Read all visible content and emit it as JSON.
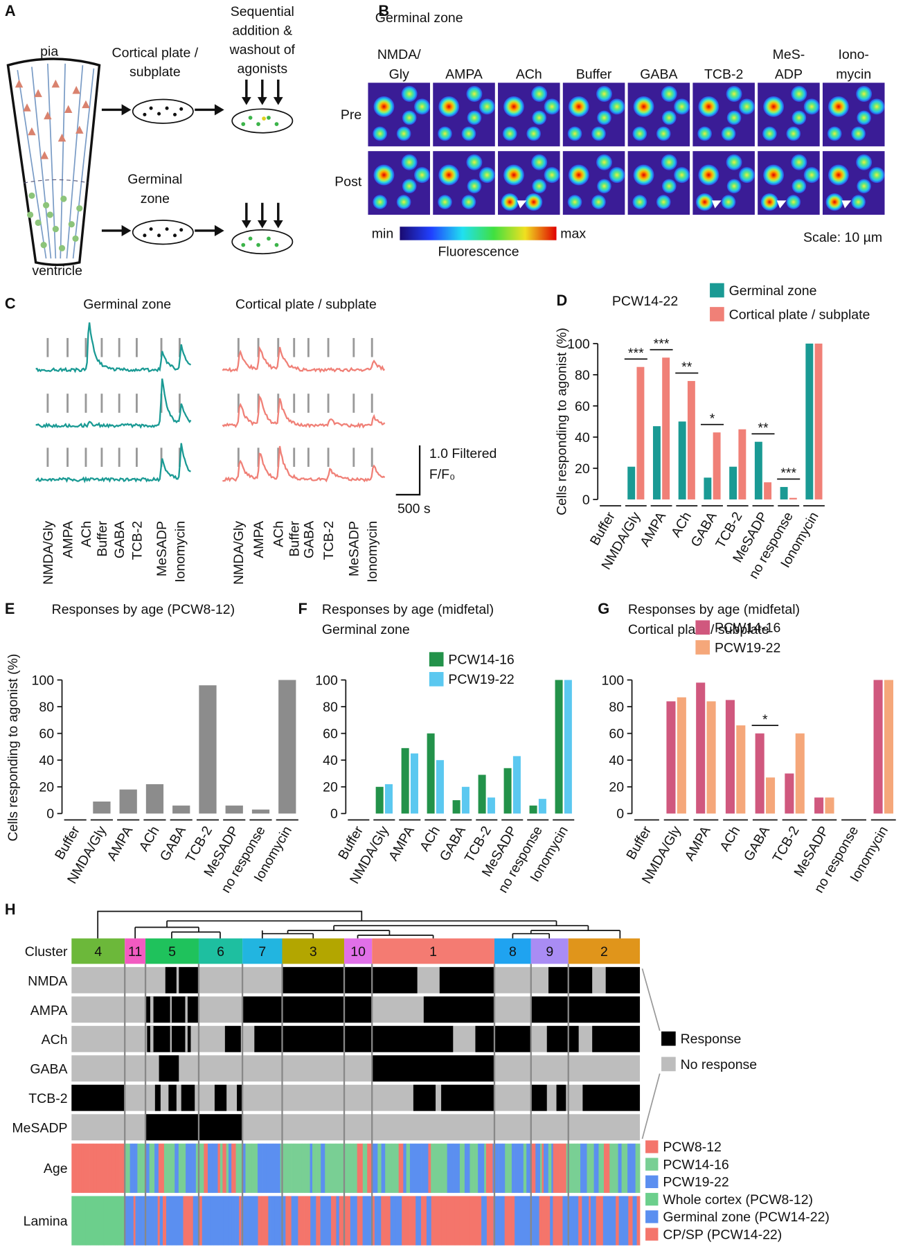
{
  "panel_labels": [
    "A",
    "B",
    "C",
    "D",
    "E",
    "F",
    "G",
    "H"
  ],
  "panel_a": {
    "top_label": "pia",
    "bottom_label": "ventricle",
    "cp_label": [
      "Cortical plate /",
      "subplate"
    ],
    "step_label": [
      "Sequential",
      "addition &",
      "washout of",
      "agonists"
    ],
    "gz_label": [
      "Germinal",
      "zone"
    ]
  },
  "panel_b": {
    "title": "Germinal zone",
    "columns": [
      [
        "NMDA/",
        "Gly"
      ],
      [
        "AMPA"
      ],
      [
        "ACh"
      ],
      [
        "Buffer"
      ],
      [
        "GABA"
      ],
      [
        "TCB-2"
      ],
      [
        "MeS-",
        "ADP"
      ],
      [
        "Iono-",
        "mycin"
      ]
    ],
    "rows": [
      "Pre",
      "Post"
    ],
    "colorbar_min": "min",
    "colorbar_max": "max",
    "colorbar_label": "Fluorescence",
    "scale": "Scale: 10 µm"
  },
  "panel_c": {
    "titles": [
      "Germinal zone",
      "Cortical plate / subplate"
    ],
    "agonists": [
      "NMDA/Gly",
      "AMPA",
      "ACh",
      "Buffer",
      "GABA",
      "TCB-2",
      "MeSADP",
      "Ionomycin"
    ],
    "scale_y": [
      "1.0 Filtered",
      "F/F₀"
    ],
    "scale_x": "500 s",
    "colors": [
      "#1a9a94",
      "#f08077"
    ]
  },
  "chart_data": [
    {
      "type": "bar",
      "title": "PCW14-22",
      "ylabel": "Cells responding to agonist (%)",
      "categories": [
        "Buffer",
        "NMDA/Gly",
        "AMPA",
        "ACh",
        "GABA",
        "TCB-2",
        "MeSADP",
        "no response",
        "Ionomycin"
      ],
      "series": [
        {
          "name": "Germinal zone",
          "color": "#1a9a94",
          "values": [
            0,
            21,
            47,
            50,
            14,
            21,
            37,
            8,
            100
          ]
        },
        {
          "name": "Cortical plate / subplate",
          "color": "#f08077",
          "values": [
            0,
            85,
            91,
            76,
            43,
            45,
            11,
            1,
            100
          ]
        }
      ],
      "annotations": [
        null,
        "***",
        "***",
        "**",
        "*",
        null,
        "**",
        "***",
        null
      ],
      "ylim": [
        0,
        100
      ],
      "yticks": [
        0,
        20,
        40,
        60,
        80,
        100
      ]
    },
    {
      "type": "bar",
      "title": "Responses by age (PCW8-12)",
      "ylabel": "Cells responding to agonist (%)",
      "categories": [
        "Buffer",
        "NMDA/Gly",
        "AMPA",
        "ACh",
        "GABA",
        "TCB-2",
        "MeSADP",
        "no response",
        "Ionomycin"
      ],
      "values": [
        0,
        9,
        18,
        22,
        6,
        96,
        6,
        3,
        100
      ],
      "color": "#8c8c8c",
      "ylim": [
        0,
        100
      ],
      "yticks": [
        0,
        20,
        40,
        60,
        80,
        100
      ]
    },
    {
      "type": "bar",
      "title": "Responses by age (midfetal)",
      "subtitle": "Germinal zone",
      "categories": [
        "Buffer",
        "NMDA/Gly",
        "AMPA",
        "ACh",
        "GABA",
        "TCB-2",
        "MeSADP",
        "no response",
        "Ionomycin"
      ],
      "series": [
        {
          "name": "PCW14-16",
          "color": "#23924a",
          "values": [
            0,
            20,
            49,
            60,
            10,
            29,
            34,
            6,
            100
          ]
        },
        {
          "name": "PCW19-22",
          "color": "#5bc8f0",
          "values": [
            0,
            22,
            45,
            40,
            20,
            12,
            43,
            11,
            100
          ]
        }
      ],
      "ylim": [
        0,
        100
      ],
      "yticks": [
        0,
        20,
        40,
        60,
        80,
        100
      ]
    },
    {
      "type": "bar",
      "title": "Responses by age (midfetal)",
      "subtitle": "Cortical plate / subplate",
      "categories": [
        "Buffer",
        "NMDA/Gly",
        "AMPA",
        "ACh",
        "GABA",
        "TCB-2",
        "MeSADP",
        "no response",
        "Ionomycin"
      ],
      "series": [
        {
          "name": "PCW14-16",
          "color": "#d0587e",
          "values": [
            0,
            84,
            98,
            85,
            60,
            30,
            12,
            0,
            100
          ]
        },
        {
          "name": "PCW19-22",
          "color": "#f5a77a",
          "values": [
            0,
            87,
            84,
            66,
            27,
            60,
            12,
            0,
            100
          ]
        }
      ],
      "annotations": [
        null,
        null,
        null,
        null,
        "*",
        null,
        null,
        null,
        null
      ],
      "ylim": [
        0,
        100
      ],
      "yticks": [
        0,
        20,
        40,
        60,
        80,
        100
      ]
    }
  ],
  "panel_h": {
    "cluster_label": "Cluster",
    "clusters": [
      "4",
      "11",
      "5",
      "6",
      "7",
      "3",
      "10",
      "1",
      "8",
      "9",
      "2"
    ],
    "cluster_colors": [
      "#6cb83a",
      "#f25bc1",
      "#1fc25c",
      "#1ebfa0",
      "#22b5e0",
      "#b3a600",
      "#e070e8",
      "#f47b72",
      "#1fa3f0",
      "#a98cf4",
      "#e0951b"
    ],
    "rows": [
      "NMDA",
      "AMPA",
      "ACh",
      "GABA",
      "TCB-2",
      "MeSADP"
    ],
    "age_label": "Age",
    "lamina_label": "Lamina",
    "response_legend": [
      "Response",
      "No response"
    ],
    "response_colors": [
      "#000000",
      "#bdbdbd"
    ],
    "age_legend": [
      "PCW8-12",
      "PCW14-16",
      "PCW19-22"
    ],
    "age_colors": [
      "#f4756b",
      "#79cf94",
      "#5b8ff0"
    ],
    "lamina_legend": [
      "Whole cortex (PCW8-12)",
      "Germinal zone (PCW14-22)",
      "CP/SP (PCW14-22)"
    ],
    "lamina_colors": [
      "#6ccf8c",
      "#5b8ff0",
      "#f4756b"
    ]
  }
}
